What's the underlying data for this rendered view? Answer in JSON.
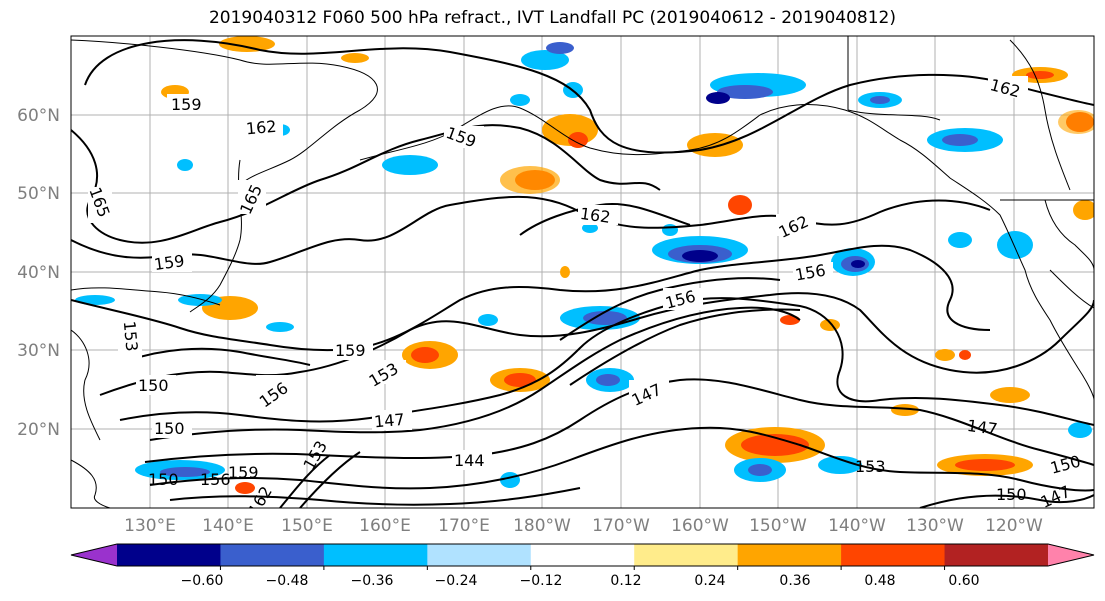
{
  "title": "2019040312 F060 500 hPa refract., IVT Landfall PC (2019040612 - 2019040812)",
  "lat_labels": [
    "60°N",
    "50°N",
    "40°N",
    "30°N",
    "20°N"
  ],
  "lon_labels": [
    "130°E",
    "140°E",
    "150°E",
    "160°E",
    "170°E",
    "180°W",
    "170°W",
    "160°W",
    "150°W",
    "140°W",
    "130°W",
    "120°W"
  ],
  "contour_labels": [
    "159",
    "162",
    "165",
    "165",
    "159",
    "162",
    "162",
    "162",
    "159",
    "156",
    "156",
    "153",
    "159",
    "153",
    "150",
    "156",
    "147",
    "150",
    "147",
    "144",
    "150",
    "156",
    "159",
    "153",
    "162",
    "153",
    "147",
    "150",
    "150",
    "147"
  ],
  "colorbar": {
    "colors": [
      "#9a32cd",
      "#00008b",
      "#3a5fcd",
      "#00bfff",
      "#b0e2ff",
      "#ffffff",
      "#ffec8b",
      "#ffa500",
      "#ff4500",
      "#b22222",
      "#ff82ab"
    ],
    "tick_labels": [
      "−0.60",
      "−0.48",
      "−0.36",
      "−0.24",
      "−0.12",
      "0.12",
      "0.24",
      "0.36",
      "0.48",
      "0.60"
    ]
  },
  "colors": {
    "land_line": "#000000",
    "grid": "#b0b0b0",
    "label_gray": "#7f7f7f"
  }
}
